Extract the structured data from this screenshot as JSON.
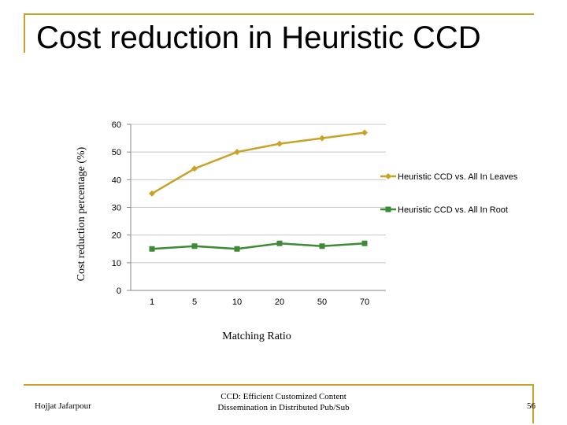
{
  "slide": {
    "title": "Cost reduction in Heuristic CCD",
    "footer_left": "Hojjat Jafarpour",
    "footer_center_line1": "CCD: Efficient Customized Content",
    "footer_center_line2": "Dissemination in Distributed Pub/Sub",
    "page_number": "56"
  },
  "colors": {
    "accent": "#c9a227",
    "series1": "#c9a227",
    "series2": "#3d8b37",
    "grid": "#c8c8c8"
  },
  "chart_data": {
    "type": "line",
    "title": "",
    "xlabel": "Matching Ratio",
    "ylabel": "Cost reduction percentage (%)",
    "categories": [
      "1",
      "5",
      "10",
      "20",
      "50",
      "70"
    ],
    "ylim": [
      0,
      60
    ],
    "yticks": [
      "0",
      "10",
      "20",
      "30",
      "40",
      "50",
      "60"
    ],
    "grid": true,
    "legend_position": "right",
    "series": [
      {
        "name": "Heuristic CCD vs. All In Leaves",
        "values": [
          35,
          44,
          50,
          53,
          55,
          57
        ],
        "marker": "diamond"
      },
      {
        "name": "Heuristic CCD vs. All In Root",
        "values": [
          15,
          16,
          15,
          17,
          16,
          17
        ],
        "marker": "square"
      }
    ]
  }
}
